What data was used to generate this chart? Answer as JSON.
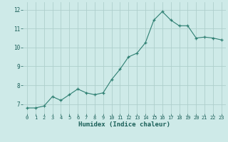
{
  "x": [
    0,
    1,
    2,
    3,
    4,
    5,
    6,
    7,
    8,
    9,
    10,
    11,
    12,
    13,
    14,
    15,
    16,
    17,
    18,
    19,
    20,
    21,
    22,
    23
  ],
  "y": [
    6.8,
    6.8,
    6.9,
    7.4,
    7.2,
    7.5,
    7.8,
    7.6,
    7.5,
    7.6,
    8.3,
    8.85,
    9.5,
    9.7,
    10.25,
    11.45,
    11.9,
    11.45,
    11.15,
    11.15,
    10.5,
    10.55,
    10.5,
    10.4
  ],
  "line_color": "#2e7f72",
  "marker": "+",
  "bg_color": "#ceeae8",
  "grid_color": "#aecfcc",
  "xlabel": "Humidex (Indice chaleur)",
  "xlabel_color": "#1a5f58",
  "tick_color": "#1a5f58",
  "ylim": [
    6.5,
    12.4
  ],
  "yticks": [
    7,
    8,
    9,
    10,
    11,
    12
  ],
  "xticks": [
    0,
    1,
    2,
    3,
    4,
    5,
    6,
    7,
    8,
    9,
    10,
    11,
    12,
    13,
    14,
    15,
    16,
    17,
    18,
    19,
    20,
    21,
    22,
    23
  ]
}
